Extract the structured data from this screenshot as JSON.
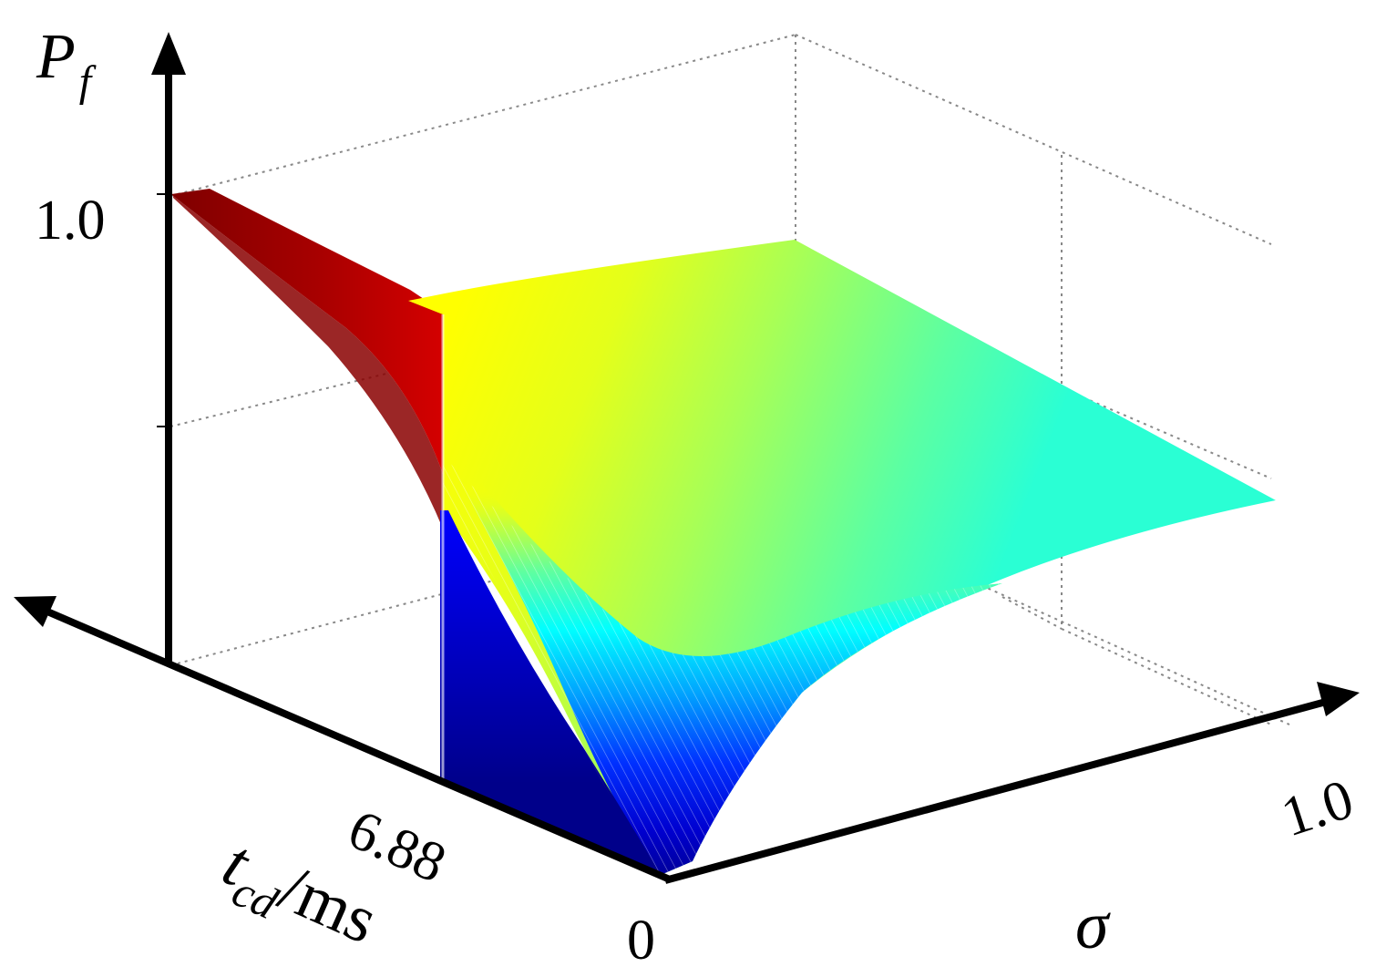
{
  "chart_data": {
    "type": "surface",
    "title": "",
    "axes": {
      "z": {
        "symbol": "P",
        "subscript": "f",
        "tick_label": "1.0",
        "range": [
          0,
          1.0
        ],
        "grid": true
      },
      "x": {
        "symbol": "t",
        "subscript": "cd",
        "unit": "/ms",
        "tick_label": "6.88",
        "tick_value": 6.88
      },
      "y": {
        "symbol": "σ",
        "tick_label": "1.0",
        "range": [
          0,
          1.0
        ]
      },
      "origin_label": "0"
    },
    "colormap": "jet",
    "colormap_colors": [
      "#00008f",
      "#0000ff",
      "#00ffff",
      "#7fff7f",
      "#ffff00",
      "#ff0000",
      "#7f0000"
    ],
    "surface": {
      "grid_lines": true,
      "z_at_tcd_max_sigma_0": 1.0,
      "z_at_tcd_6_88_sigma_0_top": 0.82,
      "z_at_tcd_6_88_sigma_0_bottom": 0.0,
      "z_at_tcd_6_88_sigma_1": 0.56,
      "z_at_tcd_0_sigma_1": 0.48
    }
  }
}
